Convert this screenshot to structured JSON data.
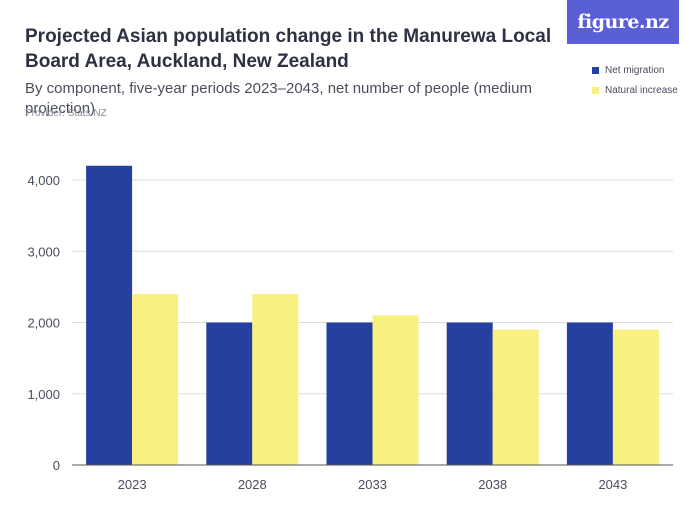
{
  "header": {
    "title": "Projected Asian population change in the Manurewa Local Board Area, Auckland, New Zealand",
    "subtitle": "By component, five-year periods 2023–2043, net number of people (medium projection)",
    "provider": "Provider: Stats NZ",
    "logo_text": "figure.nz"
  },
  "colors": {
    "net_migration": "#26409f",
    "natural_increase": "#f8f07f",
    "grid": "#dddddd",
    "logo_bg": "#5b5fd6"
  },
  "chart_data": {
    "type": "bar",
    "title": "Projected Asian population change in the Manurewa Local Board Area, Auckland, New Zealand",
    "subtitle": "By component, five-year periods 2023–2043, net number of people (medium projection)",
    "xlabel": "",
    "ylabel": "",
    "categories": [
      "2023",
      "2028",
      "2033",
      "2038",
      "2043"
    ],
    "series": [
      {
        "name": "Net migration",
        "values": [
          4200,
          2000,
          2000,
          2000,
          2000
        ]
      },
      {
        "name": "Natural increase",
        "values": [
          2400,
          2400,
          2100,
          1900,
          1900
        ]
      }
    ],
    "ylim": [
      0,
      4000
    ],
    "yticks": [
      0,
      1000,
      2000,
      3000,
      4000
    ],
    "ytick_labels": [
      "0",
      "1,000",
      "2,000",
      "3,000",
      "4,000"
    ],
    "grid": true,
    "legend_position": "top-right"
  }
}
